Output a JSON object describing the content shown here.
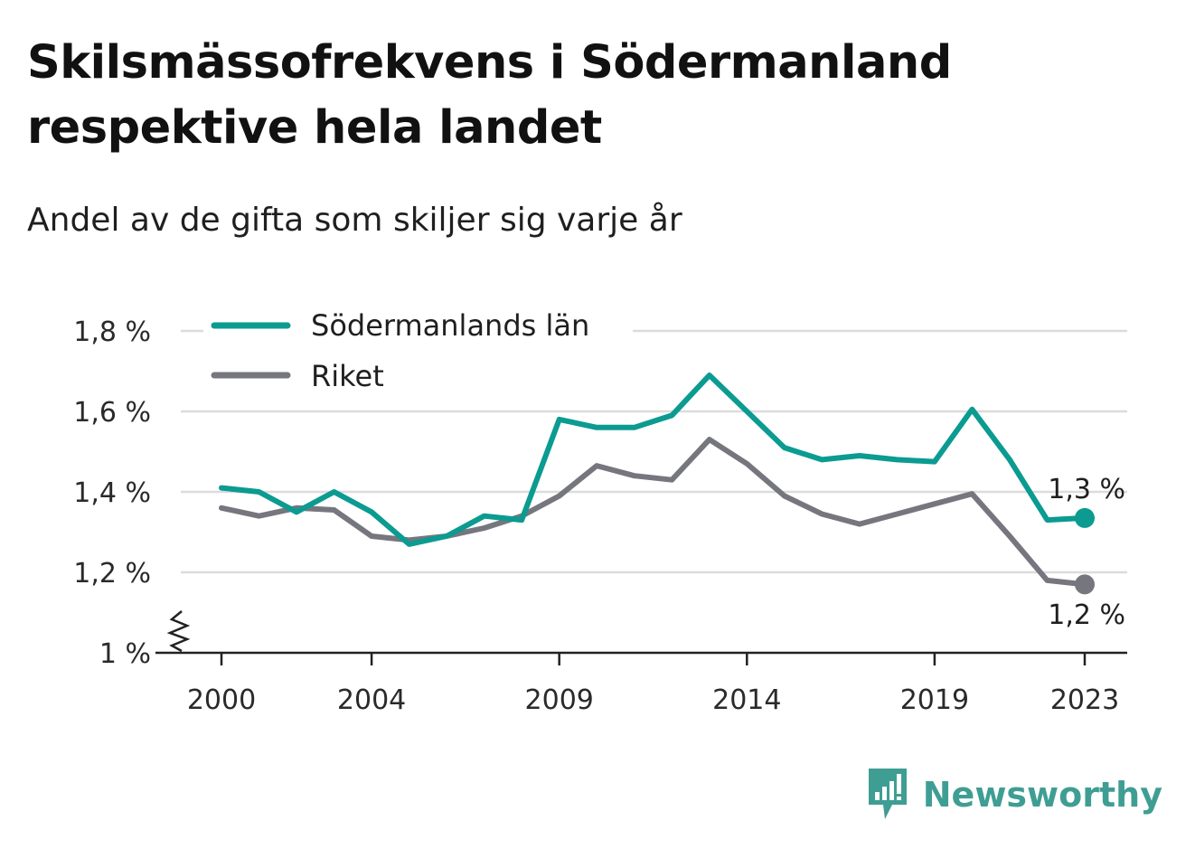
{
  "title": "Skilsmässofrekvens i Södermanland respektive hela landet",
  "subtitle": "Andel av de gifta som skiljer sig varje år",
  "brand": {
    "name": "Newsworthy",
    "icon": "newsworthy-logo-icon",
    "color": "#3f9e93"
  },
  "chart_data": {
    "type": "line",
    "x": [
      2000,
      2001,
      2002,
      2003,
      2004,
      2005,
      2006,
      2007,
      2008,
      2009,
      2010,
      2011,
      2012,
      2013,
      2014,
      2015,
      2016,
      2017,
      2018,
      2019,
      2020,
      2021,
      2022,
      2023
    ],
    "x_ticks": [
      2000,
      2004,
      2009,
      2014,
      2019,
      2023
    ],
    "x_tick_labels": [
      "2000",
      "2004",
      "2009",
      "2014",
      "2019",
      "2023"
    ],
    "ylim": [
      1.0,
      1.8
    ],
    "y_ticks": [
      1.0,
      1.2,
      1.4,
      1.6,
      1.8
    ],
    "y_tick_labels": [
      "1 %",
      "1,2 %",
      "1,4 %",
      "1,6 %",
      "1,8 %"
    ],
    "y_axis_break": true,
    "grid": true,
    "legend": "top-left",
    "series": [
      {
        "name": "Södermanlands län",
        "color": "#0b9b91",
        "values": [
          1.41,
          1.4,
          1.35,
          1.4,
          1.35,
          1.27,
          1.29,
          1.34,
          1.33,
          1.58,
          1.56,
          1.56,
          1.59,
          1.69,
          1.6,
          1.51,
          1.48,
          1.49,
          1.48,
          1.475,
          1.605,
          1.48,
          1.33,
          1.335
        ],
        "end_label": "1,3 %"
      },
      {
        "name": "Riket",
        "color": "#76767e",
        "values": [
          1.36,
          1.34,
          1.36,
          1.355,
          1.29,
          1.28,
          1.29,
          1.31,
          1.34,
          1.39,
          1.465,
          1.44,
          1.43,
          1.53,
          1.47,
          1.39,
          1.345,
          1.32,
          1.345,
          1.37,
          1.395,
          1.29,
          1.18,
          1.17
        ],
        "end_label": "1,2 %"
      }
    ]
  }
}
